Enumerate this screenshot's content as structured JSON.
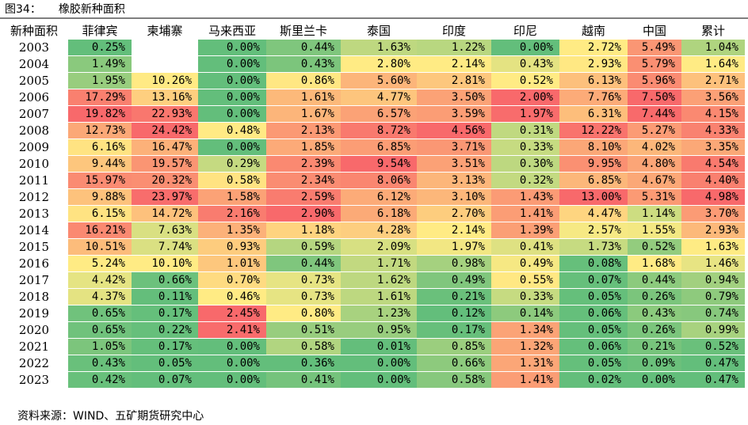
{
  "figure_label": "图34：",
  "chart_data": {
    "type": "heatmap",
    "title": "橡胶新种面积",
    "corner_label": "新种面积",
    "columns": [
      "菲律宾",
      "柬埔寨",
      "马来西亚",
      "斯里兰卡",
      "泰国",
      "印度",
      "印尼",
      "越南",
      "中国",
      "累计"
    ],
    "rows": [
      "2003",
      "2004",
      "2005",
      "2006",
      "2007",
      "2008",
      "2009",
      "2010",
      "2011",
      "2012",
      "2013",
      "2014",
      "2015",
      "2016",
      "2017",
      "2018",
      "2019",
      "2020",
      "2021",
      "2022",
      "2023"
    ],
    "values": [
      [
        0.25,
        null,
        0.0,
        0.44,
        1.63,
        1.22,
        0.0,
        2.72,
        5.49,
        1.04
      ],
      [
        1.49,
        null,
        0.0,
        0.43,
        2.8,
        2.14,
        0.43,
        2.93,
        5.79,
        1.64
      ],
      [
        1.95,
        10.26,
        0.0,
        0.86,
        5.6,
        2.81,
        0.52,
        6.13,
        5.96,
        2.71
      ],
      [
        17.29,
        13.16,
        0.0,
        1.61,
        4.77,
        3.5,
        2.0,
        7.76,
        7.5,
        3.56
      ],
      [
        19.82,
        22.93,
        0.0,
        1.67,
        6.57,
        3.59,
        1.97,
        6.31,
        7.44,
        4.15
      ],
      [
        12.73,
        24.42,
        0.48,
        2.13,
        8.72,
        4.56,
        0.31,
        12.22,
        5.27,
        4.33
      ],
      [
        6.16,
        16.47,
        0.0,
        1.85,
        6.85,
        3.71,
        0.33,
        8.1,
        4.02,
        3.35
      ],
      [
        9.44,
        19.57,
        0.29,
        2.39,
        9.54,
        3.51,
        0.3,
        9.95,
        4.8,
        4.54
      ],
      [
        15.97,
        20.32,
        0.58,
        2.34,
        8.06,
        3.13,
        0.32,
        6.85,
        4.67,
        4.4
      ],
      [
        9.88,
        23.97,
        1.58,
        2.59,
        6.12,
        3.1,
        1.43,
        13.0,
        5.31,
        4.98
      ],
      [
        6.15,
        14.72,
        2.16,
        2.9,
        6.18,
        2.7,
        1.41,
        4.47,
        1.14,
        3.7
      ],
      [
        16.21,
        7.63,
        1.35,
        1.18,
        4.28,
        2.14,
        1.39,
        2.57,
        1.55,
        2.93
      ],
      [
        10.51,
        7.74,
        0.93,
        0.59,
        2.09,
        1.97,
        0.41,
        1.73,
        0.52,
        1.63
      ],
      [
        5.24,
        10.1,
        1.01,
        0.44,
        1.71,
        0.98,
        0.49,
        0.08,
        1.68,
        1.46
      ],
      [
        4.42,
        0.66,
        0.7,
        0.73,
        1.62,
        0.49,
        0.55,
        0.07,
        0.44,
        0.94
      ],
      [
        4.37,
        0.11,
        0.46,
        0.73,
        1.61,
        0.21,
        0.33,
        0.05,
        0.26,
        0.79
      ],
      [
        0.65,
        0.17,
        2.45,
        0.8,
        1.23,
        0.12,
        0.14,
        0.06,
        0.43,
        0.74
      ],
      [
        0.65,
        0.22,
        2.41,
        0.51,
        0.95,
        0.17,
        1.34,
        0.05,
        0.26,
        0.99
      ],
      [
        1.05,
        0.17,
        0.0,
        0.58,
        0.01,
        0.85,
        1.32,
        0.06,
        0.21,
        0.52
      ],
      [
        0.43,
        0.05,
        0.0,
        0.36,
        0.0,
        0.66,
        1.31,
        0.05,
        0.09,
        0.47
      ],
      [
        0.42,
        0.07,
        0.0,
        0.41,
        0.0,
        0.58,
        1.41,
        0.02,
        0.0,
        0.47
      ]
    ],
    "unit": "%",
    "color_scale": "per-column three-color scale: green (low) → yellow (mid) → red (high)",
    "colors": {
      "low": "#63be7b",
      "mid": "#ffeb84",
      "high": "#f8696b"
    }
  },
  "source_note": "资料来源：WIND、五矿期货研究中心"
}
